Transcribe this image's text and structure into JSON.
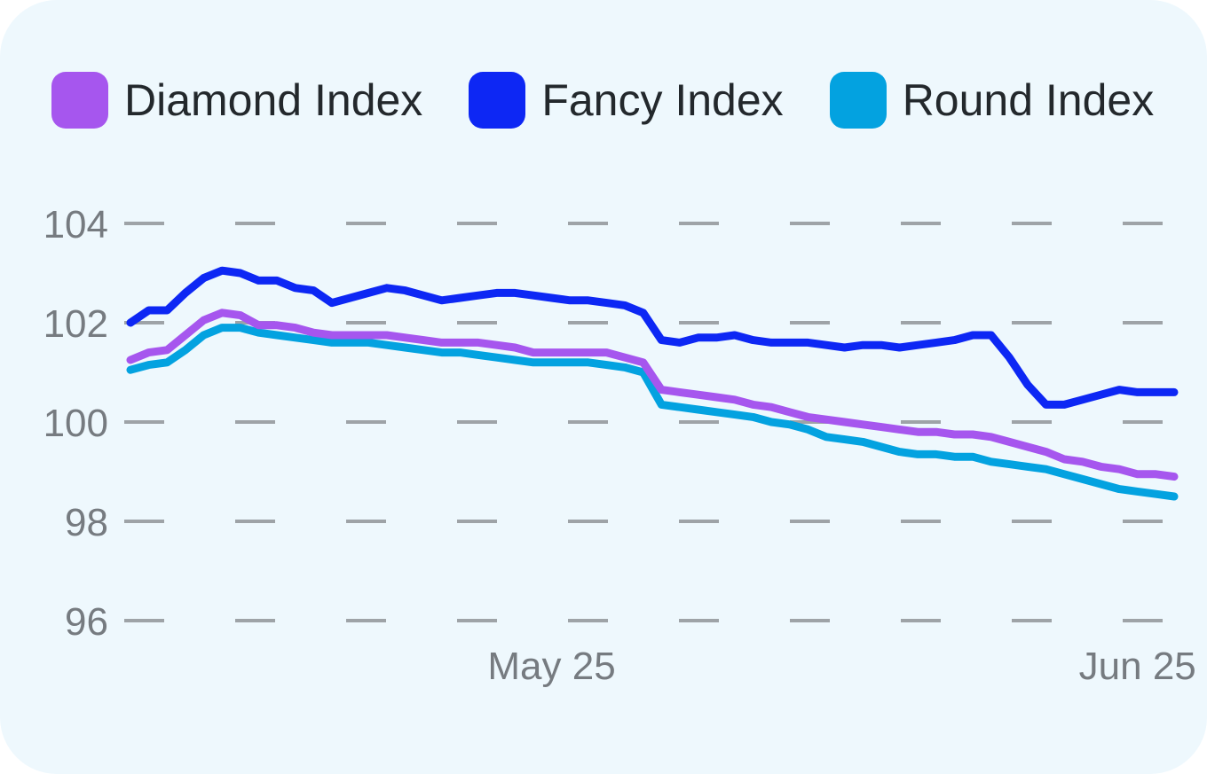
{
  "colors": {
    "background": "#eef8fd",
    "grid": "#9ea3a7",
    "tick_text": "#767b80"
  },
  "chart_data": {
    "type": "line",
    "legend_position": "top-left",
    "grid": true,
    "ylim": [
      96,
      104
    ],
    "y_ticks": [
      96,
      98,
      100,
      102,
      104
    ],
    "y_tick_labels": [
      "96",
      "98",
      "100",
      "102",
      "104"
    ],
    "x_ticks": [
      {
        "index": 23,
        "label": "May 25"
      },
      {
        "index": 55,
        "label": "Jun 25"
      }
    ],
    "series": [
      {
        "name": "Diamond Index",
        "color": "#a656ee",
        "values": [
          101.25,
          101.4,
          101.45,
          101.75,
          102.05,
          102.2,
          102.15,
          101.95,
          101.95,
          101.9,
          101.8,
          101.75,
          101.75,
          101.75,
          101.75,
          101.7,
          101.65,
          101.6,
          101.6,
          101.6,
          101.55,
          101.5,
          101.4,
          101.4,
          101.4,
          101.4,
          101.4,
          101.3,
          101.2,
          100.65,
          100.6,
          100.55,
          100.5,
          100.45,
          100.35,
          100.3,
          100.2,
          100.1,
          100.05,
          100.0,
          99.95,
          99.9,
          99.85,
          99.8,
          99.8,
          99.75,
          99.75,
          99.7,
          99.6,
          99.5,
          99.4,
          99.25,
          99.2,
          99.1,
          99.05,
          98.95,
          98.95,
          98.9
        ]
      },
      {
        "name": "Fancy Index",
        "color": "#0d27f4",
        "values": [
          102.0,
          102.25,
          102.25,
          102.6,
          102.9,
          103.05,
          103.0,
          102.85,
          102.85,
          102.7,
          102.65,
          102.4,
          102.5,
          102.6,
          102.7,
          102.65,
          102.55,
          102.45,
          102.5,
          102.55,
          102.6,
          102.6,
          102.55,
          102.5,
          102.45,
          102.45,
          102.4,
          102.35,
          102.2,
          101.65,
          101.6,
          101.7,
          101.7,
          101.75,
          101.65,
          101.6,
          101.6,
          101.6,
          101.55,
          101.5,
          101.55,
          101.55,
          101.5,
          101.55,
          101.6,
          101.65,
          101.75,
          101.75,
          101.3,
          100.75,
          100.35,
          100.35,
          100.45,
          100.55,
          100.65,
          100.6,
          100.6,
          100.6
        ]
      },
      {
        "name": "Round Index",
        "color": "#03a2e0",
        "values": [
          101.05,
          101.15,
          101.2,
          101.45,
          101.75,
          101.9,
          101.9,
          101.8,
          101.75,
          101.7,
          101.65,
          101.6,
          101.6,
          101.6,
          101.55,
          101.5,
          101.45,
          101.4,
          101.4,
          101.35,
          101.3,
          101.25,
          101.2,
          101.2,
          101.2,
          101.2,
          101.15,
          101.1,
          101.0,
          100.35,
          100.3,
          100.25,
          100.2,
          100.15,
          100.1,
          100.0,
          99.95,
          99.85,
          99.7,
          99.65,
          99.6,
          99.5,
          99.4,
          99.35,
          99.35,
          99.3,
          99.3,
          99.2,
          99.15,
          99.1,
          99.05,
          98.95,
          98.85,
          98.75,
          98.65,
          98.6,
          98.55,
          98.5
        ]
      }
    ]
  }
}
